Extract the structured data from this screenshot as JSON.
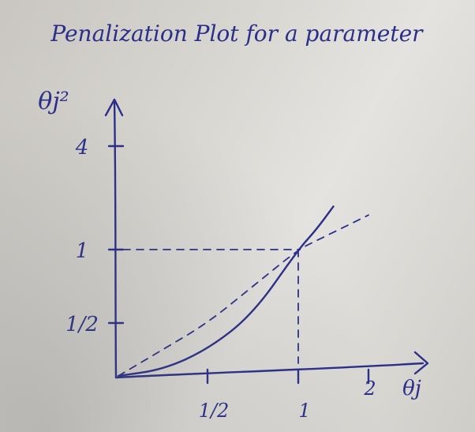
{
  "chart_data": {
    "type": "line",
    "title": "Penalization Plot for a parameter",
    "ylabel": "θj²",
    "xlabel": "θj",
    "x_ticks": [
      {
        "value": 0.5,
        "label": "1/2"
      },
      {
        "value": 1,
        "label": "1"
      },
      {
        "value": 2,
        "label": "2"
      }
    ],
    "y_ticks": [
      {
        "value": 0.5,
        "label": "1/2"
      },
      {
        "value": 1,
        "label": "1"
      },
      {
        "value": 4,
        "label": "4"
      }
    ],
    "series": [
      {
        "style": "solid",
        "x": [
          0,
          0.25,
          0.5,
          0.75,
          1,
          1.25,
          1.5
        ],
        "y": [
          0,
          0.06,
          0.25,
          0.56,
          1,
          1.56,
          2.25
        ]
      },
      {
        "style": "dashed",
        "x": [
          0,
          0.25,
          0.5,
          0.75,
          1,
          1.25,
          1.5,
          1.75,
          2
        ],
        "y": [
          0,
          0.25,
          0.5,
          0.75,
          1,
          1.25,
          1.5,
          1.75,
          2
        ]
      }
    ],
    "guides": [
      {
        "x": 1,
        "y": 1,
        "style": "dashed"
      }
    ],
    "xlim": [
      0,
      2
    ],
    "ylim": [
      0,
      4
    ]
  }
}
